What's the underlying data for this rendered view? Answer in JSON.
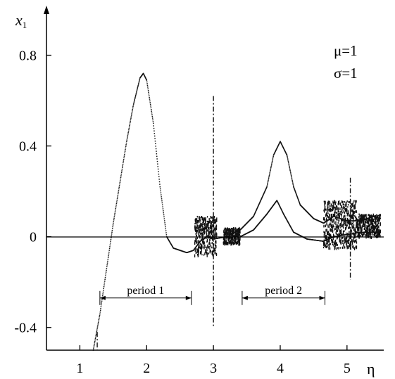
{
  "chart_data": {
    "type": "scatter",
    "title": "",
    "xlabel": "η",
    "ylabel": "x",
    "ylabel_subscript": "1",
    "xlim": [
      0.5,
      5.55
    ],
    "ylim": [
      -0.5,
      1.0
    ],
    "x_ticks": [
      1,
      2,
      3,
      4,
      5
    ],
    "x_tick_labels": [
      "1",
      "2",
      "3",
      "4",
      "5"
    ],
    "y_ticks": [
      -0.4,
      0,
      0.4,
      0.8
    ],
    "y_tick_labels": [
      "-0.4",
      "0",
      "0.4",
      "0.8"
    ],
    "grid": false,
    "parameters": [
      "μ=1",
      "σ=1"
    ],
    "regions": [
      {
        "label": "period 1",
        "x_start": 1.3,
        "x_end": 2.67,
        "y": -0.27
      },
      {
        "label": "period 2",
        "x_start": 3.43,
        "x_end": 4.67,
        "y": -0.27
      }
    ],
    "series": [
      {
        "values": [
          [
            1.2,
            -0.5
          ],
          [
            1.3,
            -0.34
          ],
          [
            1.4,
            -0.14
          ],
          [
            1.5,
            0.06
          ],
          [
            1.6,
            0.24
          ],
          [
            1.7,
            0.42
          ],
          [
            1.8,
            0.58
          ],
          [
            1.9,
            0.7
          ],
          [
            1.95,
            0.72
          ],
          [
            2.0,
            0.69
          ],
          [
            2.1,
            0.5
          ],
          [
            2.2,
            0.22
          ],
          [
            2.3,
            0.0
          ],
          [
            2.4,
            -0.05
          ],
          [
            2.5,
            -0.06
          ],
          [
            2.6,
            -0.07
          ],
          [
            2.7,
            -0.06
          ],
          [
            2.8,
            -0.02
          ],
          [
            2.9,
            0.0
          ],
          [
            3.0,
            -0.01
          ],
          [
            3.2,
            0.0
          ],
          [
            3.4,
            0.03
          ],
          [
            3.6,
            0.09
          ],
          [
            3.8,
            0.22
          ],
          [
            3.9,
            0.36
          ],
          [
            4.0,
            0.42
          ],
          [
            4.1,
            0.36
          ],
          [
            4.2,
            0.22
          ],
          [
            4.3,
            0.14
          ],
          [
            4.5,
            0.08
          ],
          [
            4.65,
            0.06
          ],
          [
            4.8,
            0.09
          ],
          [
            5.0,
            0.07
          ],
          [
            5.2,
            0.07
          ],
          [
            5.4,
            0.09
          ],
          [
            5.5,
            0.08
          ]
        ]
      },
      {
        "values": [
          [
            3.4,
            0.0
          ],
          [
            3.6,
            0.03
          ],
          [
            3.8,
            0.1
          ],
          [
            3.95,
            0.16
          ],
          [
            4.05,
            0.1
          ],
          [
            4.2,
            0.02
          ],
          [
            4.4,
            -0.01
          ],
          [
            4.65,
            -0.02
          ],
          [
            4.8,
            0.0
          ],
          [
            5.0,
            0.01
          ],
          [
            5.2,
            0.02
          ],
          [
            5.5,
            0.02
          ]
        ]
      }
    ],
    "chaotic_bands": [
      {
        "x_start": 2.72,
        "x_end": 3.05,
        "y_min": -0.08,
        "y_max": 0.09
      },
      {
        "x_start": 3.15,
        "x_end": 3.4,
        "y_min": -0.03,
        "y_max": 0.04
      },
      {
        "x_start": 4.65,
        "x_end": 5.15,
        "y_min": -0.05,
        "y_max": 0.16
      },
      {
        "x_start": 5.15,
        "x_end": 5.5,
        "y_min": 0.0,
        "y_max": 0.1
      }
    ],
    "spikes": [
      {
        "x": 3.0,
        "y_min": -0.4,
        "y_max": 0.62
      },
      {
        "x": 5.05,
        "y_min": -0.19,
        "y_max": 0.26
      },
      {
        "x": 1.26,
        "y_min": -0.5,
        "y_max": -0.42
      }
    ]
  }
}
